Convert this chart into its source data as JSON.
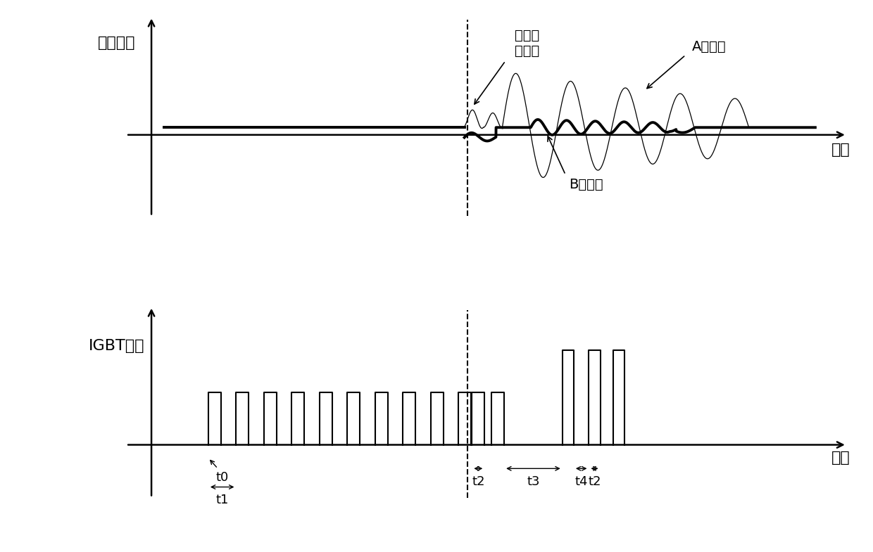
{
  "bg_color": "#ffffff",
  "text_color": "#000000",
  "top_ylabel": "电压波形",
  "top_xlabel": "时间",
  "bot_ylabel": "IGBT驱动",
  "bot_xlabel": "时间",
  "label_sync": "同步检\n测信号",
  "label_A": "A点波形",
  "label_B": "B点波形",
  "font_size": 16,
  "ann_fontsize": 14
}
